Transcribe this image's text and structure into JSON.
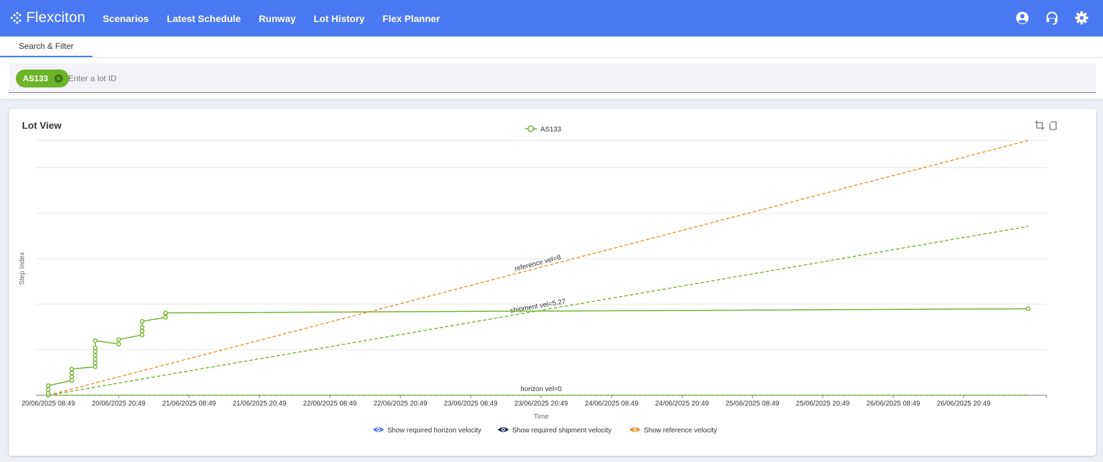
{
  "app": {
    "brand": "Flexciton"
  },
  "nav": {
    "items": [
      "Scenarios",
      "Latest Schedule",
      "Runway",
      "Lot History",
      "Flex Planner"
    ]
  },
  "icons": {
    "profile": "account-circle-icon",
    "support": "headset-icon",
    "settings": "gear-icon",
    "zoom": "crop-zoom-icon",
    "reset": "restore-icon"
  },
  "tabs": {
    "search_filter": "Search & Filter"
  },
  "filter": {
    "chip": "AS133",
    "placeholder": "Enter a lot ID"
  },
  "card": {
    "title": "Lot View"
  },
  "toggles": [
    {
      "label": "Show required horizon velocity",
      "color": "#4a79f3"
    },
    {
      "label": "Show required shipment velocity",
      "color": "#1e2551"
    },
    {
      "label": "Show reference velocity",
      "color": "#f28a22"
    }
  ],
  "colors": {
    "brand": "#4a79f3",
    "lot": "#6db429",
    "reference": "#f28a22",
    "shipment": "#6db429"
  },
  "chart_data": {
    "type": "line",
    "xlabel": "Time",
    "ylabel": "Step Index",
    "x_ticks": [
      "20/06/2025 08:49",
      "20/06/2025 20:49",
      "21/06/2025 08:49",
      "21/06/2025 20:49",
      "22/06/2025 08:49",
      "22/06/2025 20:49",
      "23/06/2025 08:49",
      "23/06/2025 20:49",
      "24/06/2025 08:49",
      "24/06/2025 20:49",
      "25/06/2025 08:49",
      "25/06/2025 20:49",
      "26/06/2025 08:49",
      "26/06/2025 20:49"
    ],
    "x_range_hours": [
      0,
      168
    ],
    "y_range": [
      0,
      1120
    ],
    "grid": true,
    "legend": "top-center",
    "series": [
      {
        "name": "AS133",
        "style": "solid",
        "markers": true,
        "x": [
          0,
          0,
          0,
          0,
          4,
          4,
          4,
          4,
          8,
          8,
          8,
          8,
          8,
          8,
          8,
          12,
          12,
          16,
          16,
          16,
          16,
          20,
          20,
          20,
          167
        ],
        "y": [
          0,
          8,
          25,
          42,
          65,
          81,
          98,
          115,
          125,
          142,
          158,
          175,
          192,
          208,
          240,
          225,
          245,
          265,
          282,
          298,
          325,
          342,
          360,
          362,
          380
        ]
      },
      {
        "name": "shipment vel=5.27",
        "style": "dashed",
        "x": [
          0,
          167
        ],
        "y": [
          0,
          742
        ]
      },
      {
        "name": "reference vel=8",
        "style": "dashed",
        "x": [
          0,
          167
        ],
        "y": [
          0,
          1120
        ]
      },
      {
        "name": "horizon vel=0",
        "style": "dashed",
        "x": [
          0,
          167
        ],
        "y": [
          0,
          0
        ]
      }
    ]
  }
}
